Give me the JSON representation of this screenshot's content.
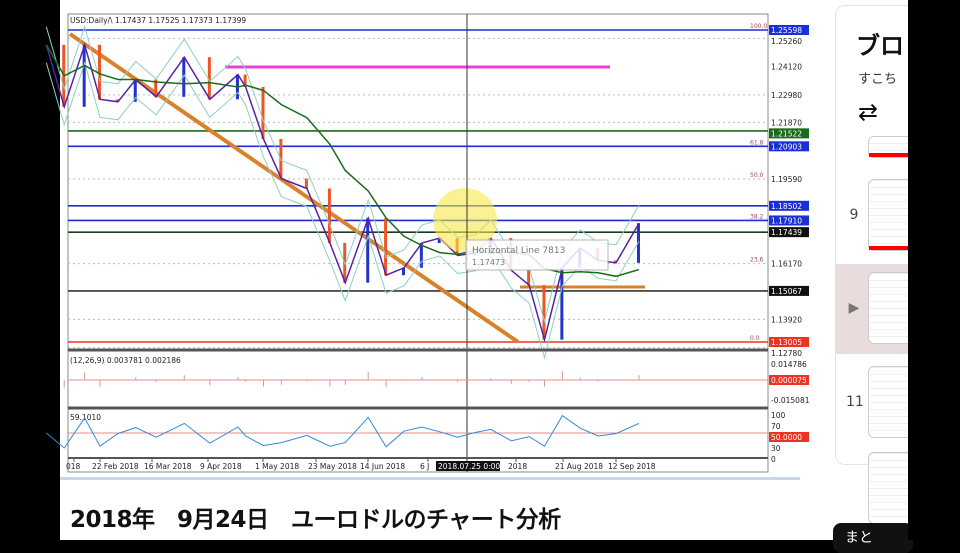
{
  "video": {
    "chart_header": "USD:Daily/\\ 1.17437 1.17525 1.17373 1.17399",
    "macd_header": "(12,26,9) 0.003781 0.002186",
    "rsi_header": "59.1010",
    "tooltip": {
      "name": "Horizontal Line 7813",
      "value": "1.17473"
    },
    "crosshair_date": "2018.07.25 0:00",
    "price_labels": [
      {
        "text": "1.25598",
        "price": 1.25598,
        "tag": "#1a2fd6",
        "line": "#1a2fd6",
        "fib": "100.0"
      },
      {
        "text": "1.25260",
        "price": 1.2526
      },
      {
        "text": "1.24120",
        "price": 1.2412,
        "line": "#ee3fd2"
      },
      {
        "text": "1.22980",
        "price": 1.2298
      },
      {
        "text": "1.21870",
        "price": 1.2187
      },
      {
        "text": "1.21522",
        "price": 1.21522,
        "tag": "#1c6b1c",
        "line": "#1c6b1c"
      },
      {
        "text": "1.20903",
        "price": 1.20903,
        "tag": "#1a2fd6",
        "line": "#1a2fd6",
        "fib": "61.8"
      },
      {
        "text": "1.19590",
        "price": 1.1959,
        "fib": "50.0"
      },
      {
        "text": "1.18502",
        "price": 1.18502,
        "tag": "#1a2fd6",
        "line": "#1a2fd6"
      },
      {
        "text": "1.17910",
        "price": 1.1791,
        "tag": "#1a2fd6",
        "line": "#1a2fd6",
        "fib": "38.2"
      },
      {
        "text": "1.17439",
        "price": 1.17439,
        "tag": "#111111",
        "line": "#1c3b1c"
      },
      {
        "text": "1.16170",
        "price": 1.1617,
        "fib": "23.6"
      },
      {
        "text": "1.15067",
        "price": 1.15067,
        "tag": "#111111",
        "line": "#333333"
      },
      {
        "text": "1.13920",
        "price": 1.1392
      },
      {
        "text": "1.13005",
        "price": 1.13005,
        "tag": "#ee3322",
        "line": "#ee3322",
        "fib": "0.0"
      },
      {
        "text": "1.12780",
        "price": 1.1278
      }
    ],
    "macd_labels": [
      {
        "text": "0.014786"
      },
      {
        "text": "0.000075",
        "tag": "#ee3322"
      },
      {
        "text": "-0.015081"
      }
    ],
    "rsi_labels": [
      {
        "text": "100"
      },
      {
        "text": "70"
      },
      {
        "text": "50.0000",
        "tag": "#ee3322"
      },
      {
        "text": "30"
      },
      {
        "text": "0"
      }
    ],
    "date_labels": [
      "018",
      "22 Feb 2018",
      "16 Mar 2018",
      "9 Apr 2018",
      "1 May 2018",
      "23 May 2018",
      "14 Jun 2018",
      "6 J",
      "2018",
      "21 Aug 2018",
      "12 Sep 2018"
    ]
  },
  "chart_data": {
    "type": "line",
    "xlabel": "",
    "ylabel": "",
    "ylim": [
      1.1278,
      1.2559
    ],
    "x": [
      "2018-02-01",
      "2018-02-08",
      "2018-02-16",
      "2018-02-22",
      "2018-03-01",
      "2018-03-08",
      "2018-03-16",
      "2018-03-27",
      "2018-04-06",
      "2018-04-17",
      "2018-04-20",
      "2018-04-27",
      "2018-05-04",
      "2018-05-14",
      "2018-05-23",
      "2018-05-29",
      "2018-06-07",
      "2018-06-14",
      "2018-06-21",
      "2018-06-28",
      "2018-07-05",
      "2018-07-12",
      "2018-07-19",
      "2018-07-25",
      "2018-08-02",
      "2018-08-09",
      "2018-08-15",
      "2018-08-22",
      "2018-08-29",
      "2018-09-05",
      "2018-09-12",
      "2018-09-21"
    ],
    "series": [
      {
        "values": [
          1.25,
          1.225,
          1.25,
          1.228,
          1.227,
          1.236,
          1.229,
          1.245,
          1.228,
          1.238,
          1.233,
          1.212,
          1.196,
          1.192,
          1.17,
          1.154,
          1.18,
          1.157,
          1.16,
          1.17,
          1.172,
          1.165,
          1.166,
          1.172,
          1.159,
          1.153,
          1.131,
          1.16,
          1.168,
          1.163,
          1.162,
          1.178
        ]
      }
    ]
  },
  "title": "2018年　9月24日　ユーロドルのチャート分析",
  "sidebar": {
    "title": "ブロ",
    "subtitle": "すこち",
    "repeat_icon": "repeat-icon",
    "items": [
      {
        "index": ""
      },
      {
        "index": "9"
      },
      {
        "index": "▶"
      },
      {
        "index": "11"
      },
      {
        "index": ""
      }
    ],
    "button": "まと"
  }
}
